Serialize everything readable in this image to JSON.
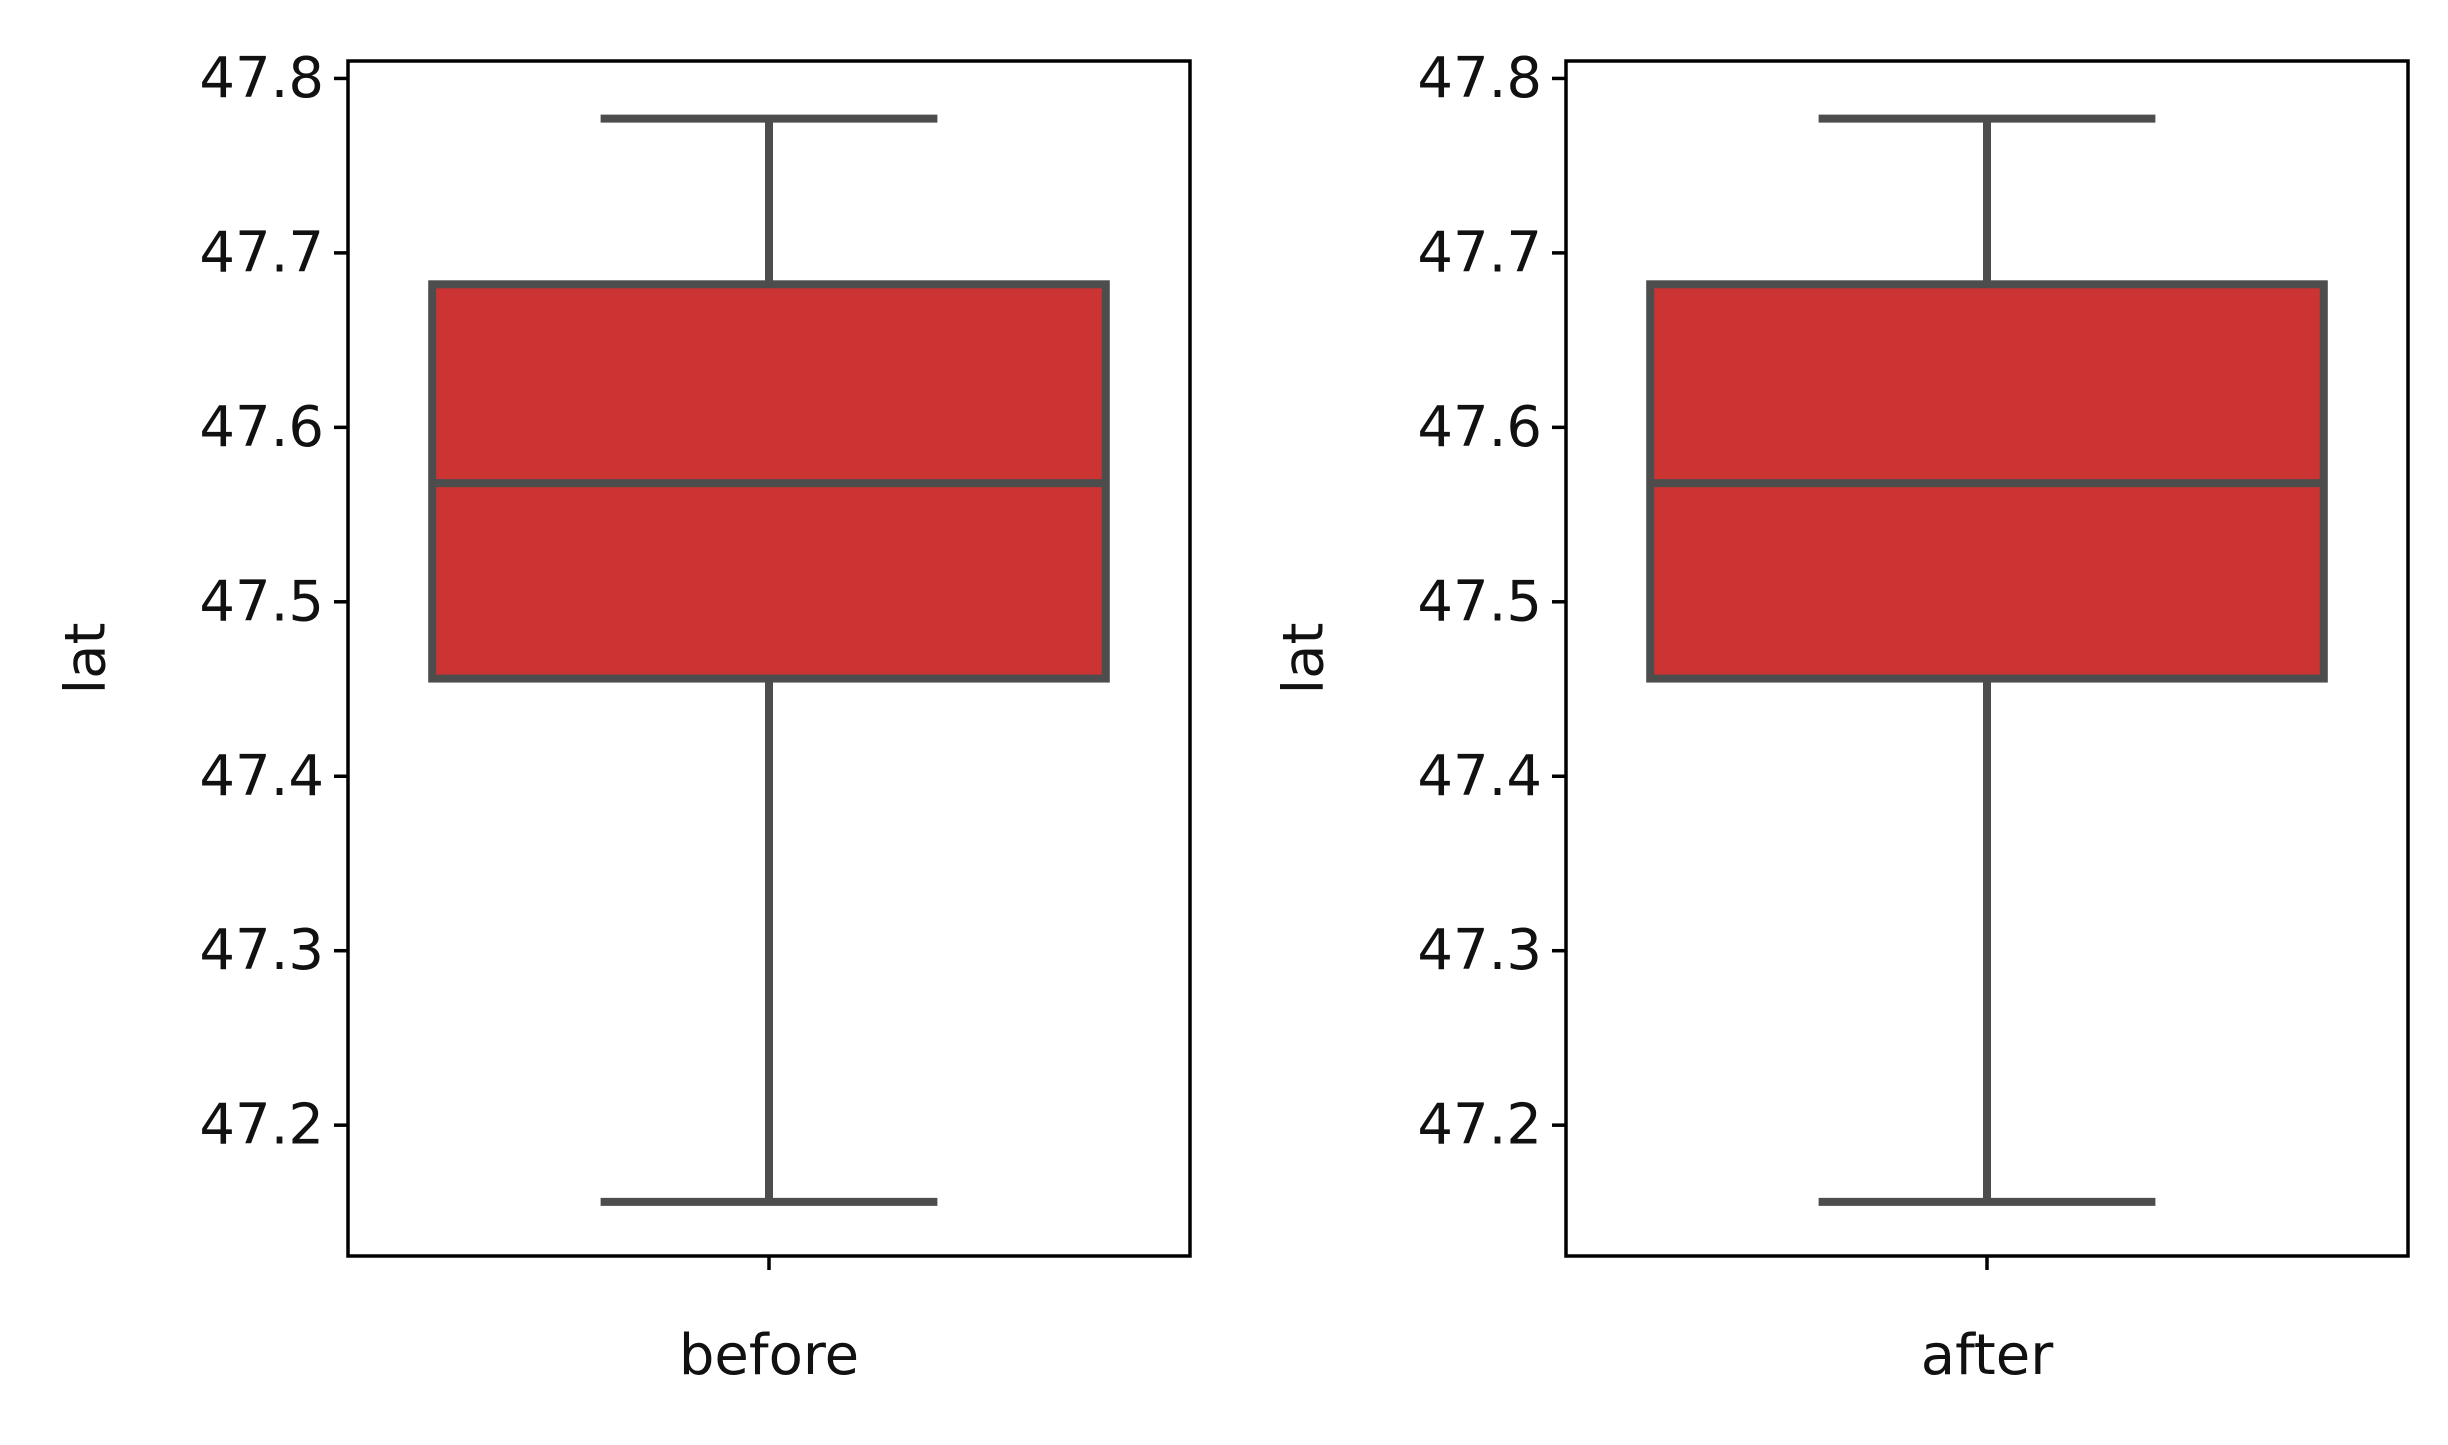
{
  "chart_data": [
    {
      "type": "box",
      "title": "",
      "xlabel": "before",
      "ylabel": "lat",
      "ylim": [
        47.125,
        47.81
      ],
      "yticks": [
        "47.2",
        "47.3",
        "47.4",
        "47.5",
        "47.6",
        "47.7",
        "47.8"
      ],
      "box": {
        "whisker_low": 47.156,
        "q1": 47.456,
        "median": 47.568,
        "q3": 47.682,
        "whisker_high": 47.777
      },
      "color": "#cc3333",
      "line_color": "#4d4d4d"
    },
    {
      "type": "box",
      "title": "",
      "xlabel": "after",
      "ylabel": "lat",
      "ylim": [
        47.125,
        47.81
      ],
      "yticks": [
        "47.2",
        "47.3",
        "47.4",
        "47.5",
        "47.6",
        "47.7",
        "47.8"
      ],
      "box": {
        "whisker_low": 47.156,
        "q1": 47.456,
        "median": 47.568,
        "q3": 47.682,
        "whisker_high": 47.777
      },
      "color": "#cc3333",
      "line_color": "#4d4d4d"
    }
  ]
}
